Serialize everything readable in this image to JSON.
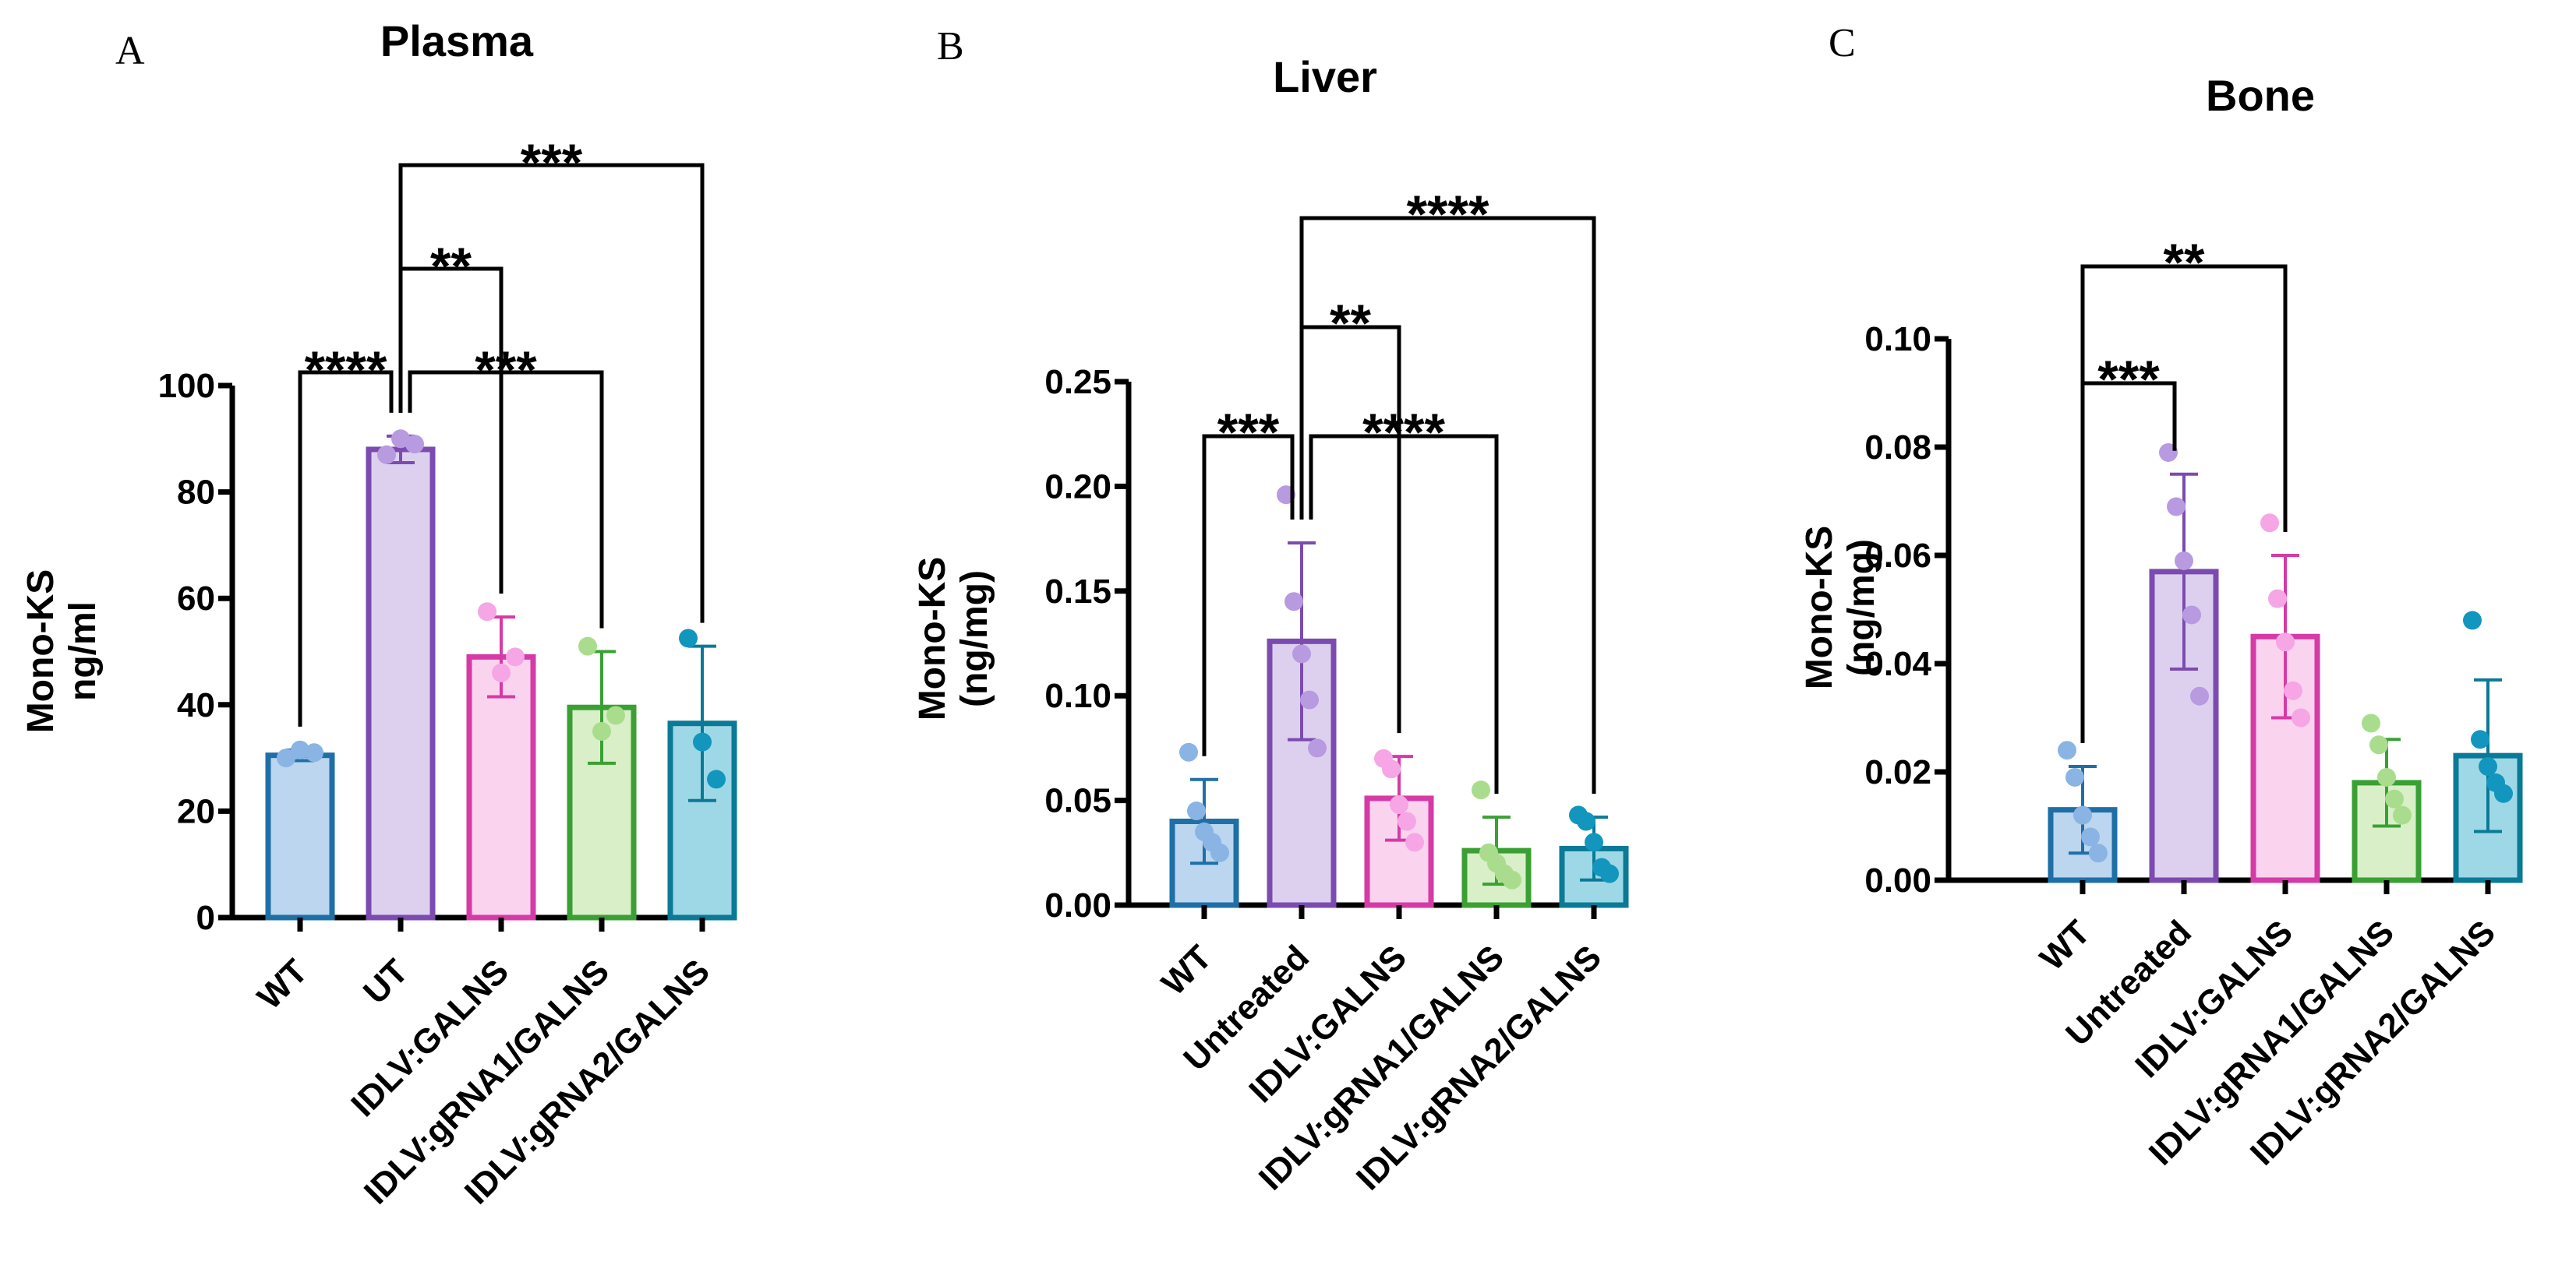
{
  "chart_data": [
    {
      "panel": "A",
      "type": "bar",
      "title": "Plasma",
      "ylabel": [
        "Mono-KS",
        "ng/ml"
      ],
      "xlabel": "",
      "ylim": [
        0,
        100
      ],
      "yticks": [
        0,
        20,
        40,
        60,
        80,
        100
      ],
      "ytick_labels": [
        "0",
        "20",
        "40",
        "60",
        "80",
        "100"
      ],
      "categories": [
        "WT",
        "UT",
        "IDLV:GALNS",
        "IDLV:gRNA1/GALNS",
        "IDLV:gRNA2/GALNS"
      ],
      "values": [
        30.5,
        88.0,
        49.0,
        39.5,
        36.5
      ],
      "error": [
        1.0,
        2.5,
        7.5,
        10.5,
        14.5
      ],
      "points": [
        [
          30.0,
          31.5,
          31.0
        ],
        [
          87.0,
          90.0,
          89.0
        ],
        [
          57.5,
          46.0,
          49.0
        ],
        [
          51.0,
          35.0,
          38.0
        ],
        [
          52.5,
          33.0,
          26.0
        ]
      ],
      "significance": [
        {
          "from": 0,
          "to": 1,
          "label": "****",
          "level": 1
        },
        {
          "from": 1,
          "to": 3,
          "label": "***",
          "level": 1
        },
        {
          "from": 1,
          "to": 2,
          "label": "**",
          "level": 2
        },
        {
          "from": 1,
          "to": 4,
          "label": "***",
          "level": 3
        }
      ]
    },
    {
      "panel": "B",
      "type": "bar",
      "title": "Liver",
      "ylabel": [
        "Mono-KS",
        "(ng/mg)"
      ],
      "xlabel": "",
      "ylim": [
        0,
        0.25
      ],
      "yticks": [
        0,
        0.05,
        0.1,
        0.15,
        0.2,
        0.25
      ],
      "ytick_labels": [
        "0.00",
        "0.05",
        "0.10",
        "0.15",
        "0.20",
        "0.25"
      ],
      "categories": [
        "WT",
        "Untreated",
        "IDLV:GALNS",
        "IDLV:gRNA1/GALNS",
        "IDLV:gRNA2/GALNS"
      ],
      "values": [
        0.04,
        0.126,
        0.051,
        0.026,
        0.027
      ],
      "error": [
        0.02,
        0.047,
        0.02,
        0.016,
        0.015
      ],
      "points": [
        [
          0.073,
          0.045,
          0.035,
          0.03,
          0.025
        ],
        [
          0.196,
          0.145,
          0.12,
          0.098,
          0.075
        ],
        [
          0.07,
          0.065,
          0.048,
          0.04,
          0.03
        ],
        [
          0.055,
          0.025,
          0.02,
          0.015,
          0.012
        ],
        [
          0.043,
          0.04,
          0.03,
          0.018,
          0.015
        ]
      ],
      "significance": [
        {
          "from": 0,
          "to": 1,
          "label": "***",
          "level": 1
        },
        {
          "from": 1,
          "to": 3,
          "label": "****",
          "level": 1
        },
        {
          "from": 1,
          "to": 2,
          "label": "**",
          "level": 2
        },
        {
          "from": 1,
          "to": 4,
          "label": "****",
          "level": 3
        }
      ]
    },
    {
      "panel": "C",
      "type": "bar",
      "title": "Bone",
      "ylabel": [
        "Mono-KS",
        "(ng/mg)"
      ],
      "xlabel": "",
      "ylim": [
        0,
        0.1
      ],
      "yticks": [
        0,
        0.02,
        0.04,
        0.06,
        0.08,
        0.1
      ],
      "ytick_labels": [
        "0.00",
        "0.02",
        "0.04",
        "0.06",
        "0.08",
        "0.10"
      ],
      "categories": [
        "WT",
        "Untreated",
        "IDLV:GALNS",
        "IDLV:gRNA1/GALNS",
        "IDLV:gRNA2/GALNS"
      ],
      "values": [
        0.013,
        0.057,
        0.045,
        0.018,
        0.023
      ],
      "error": [
        0.008,
        0.018,
        0.015,
        0.008,
        0.014
      ],
      "points": [
        [
          0.024,
          0.019,
          0.012,
          0.008,
          0.005
        ],
        [
          0.079,
          0.069,
          0.059,
          0.049,
          0.034
        ],
        [
          0.066,
          0.052,
          0.044,
          0.035,
          0.03
        ],
        [
          0.029,
          0.025,
          0.019,
          0.015,
          0.012
        ],
        [
          0.048,
          0.026,
          0.021,
          0.018,
          0.016
        ]
      ],
      "significance": [
        {
          "from": 0,
          "to": 1,
          "label": "***",
          "level": 1
        },
        {
          "from": 0,
          "to": 2,
          "label": "**",
          "level": 2
        }
      ]
    }
  ],
  "colors": {
    "strokes": [
      "#1f6fa7",
      "#7b4bb0",
      "#d63aa6",
      "#3ba034",
      "#0a7a96"
    ],
    "fills": [
      "#bcd6ef",
      "#ddd0ef",
      "#fad3ef",
      "#d9efc8",
      "#9ed8e6"
    ],
    "points": [
      "#8ab4e3",
      "#b89ae0",
      "#f6a6e4",
      "#a9dd8d",
      "#1296bd"
    ],
    "axis": "#000000"
  }
}
